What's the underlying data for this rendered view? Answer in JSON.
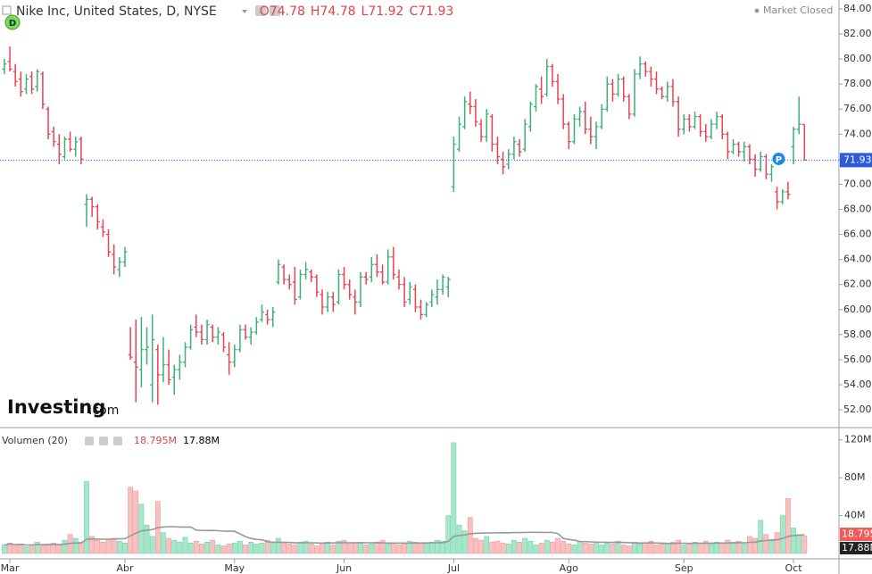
{
  "chart_data": {
    "type": "ohlc",
    "title": "Nike Inc, United States, D, NYSE",
    "ohlc_labels": [
      "O",
      "H",
      "L",
      "C"
    ],
    "status": "Market Closed",
    "logo": [
      "Investing",
      ".com"
    ],
    "badges": [
      "D",
      "P"
    ],
    "up_color": "#3bb077",
    "down_color": "#e8434f",
    "xlim": [
      -0.8,
      152.3
    ],
    "xticks": [
      {
        "value": 1,
        "label": "Mar"
      },
      {
        "value": 22,
        "label": "Abr"
      },
      {
        "value": 42,
        "label": "May"
      },
      {
        "value": 62,
        "label": "Jun"
      },
      {
        "value": 82,
        "label": "Jul"
      },
      {
        "value": 103,
        "label": "Ago"
      },
      {
        "value": 124,
        "label": "Sep"
      },
      {
        "value": 144,
        "label": "Oct"
      }
    ],
    "ylim": [
      50.65,
      84.71
    ],
    "yticks": [
      {
        "value": 52,
        "label": "52.00"
      },
      {
        "value": 54,
        "label": "54.00"
      },
      {
        "value": 56,
        "label": "56.00"
      },
      {
        "value": 58,
        "label": "58.00"
      },
      {
        "value": 60,
        "label": "60.00"
      },
      {
        "value": 62,
        "label": "62.00"
      },
      {
        "value": 64,
        "label": "64.00"
      },
      {
        "value": 66,
        "label": "66.00"
      },
      {
        "value": 68,
        "label": "68.00"
      },
      {
        "value": 70,
        "label": "70.00"
      },
      {
        "value": 72,
        "label": "72.00"
      },
      {
        "value": 74,
        "label": "74.00"
      },
      {
        "value": 76,
        "label": "76.00"
      },
      {
        "value": 78,
        "label": "78.00"
      },
      {
        "value": 80,
        "label": "80.00"
      },
      {
        "value": 82,
        "label": "82.00"
      },
      {
        "value": 84,
        "label": "84.00"
      }
    ],
    "bars": [
      [
        79.2,
        80.0,
        78.8,
        79.6
      ],
      [
        79.8,
        81.0,
        79.0,
        79.2
      ],
      [
        79.0,
        79.6,
        77.8,
        78.2
      ],
      [
        78.4,
        79.0,
        77.0,
        77.4
      ],
      [
        77.6,
        78.8,
        77.2,
        78.4
      ],
      [
        78.6,
        79.0,
        77.2,
        77.6
      ],
      [
        77.8,
        79.2,
        77.4,
        79.0
      ],
      [
        78.8,
        79.0,
        76.0,
        76.4
      ],
      [
        76.0,
        76.2,
        73.6,
        74.0
      ],
      [
        74.2,
        74.6,
        73.0,
        73.4
      ],
      [
        73.2,
        74.0,
        71.6,
        72.4
      ],
      [
        72.2,
        73.8,
        72.0,
        73.6
      ],
      [
        73.6,
        74.2,
        72.6,
        72.8
      ],
      [
        72.8,
        73.8,
        72.2,
        73.4
      ],
      [
        73.6,
        73.8,
        71.6,
        72.0
      ],
      [
        68.4,
        69.2,
        66.6,
        68.8
      ],
      [
        68.8,
        69.0,
        67.4,
        68.2
      ],
      [
        68.2,
        68.4,
        66.4,
        67.0
      ],
      [
        66.6,
        67.2,
        65.8,
        66.2
      ],
      [
        66.0,
        66.4,
        64.2,
        64.6
      ],
      [
        64.4,
        65.2,
        62.8,
        63.4
      ],
      [
        63.2,
        64.2,
        62.6,
        63.8
      ],
      [
        63.8,
        65.0,
        63.4,
        64.6
      ],
      [
        56.4,
        58.6,
        56.0,
        56.2
      ],
      [
        55.8,
        59.2,
        52.6,
        55.4
      ],
      [
        55.2,
        59.4,
        53.8,
        56.8
      ],
      [
        56.8,
        58.6,
        55.6,
        57.0
      ],
      [
        54.0,
        59.6,
        52.6,
        57.6
      ],
      [
        56.8,
        57.2,
        52.4,
        54.8
      ],
      [
        54.8,
        57.8,
        54.2,
        55.6
      ],
      [
        55.6,
        56.8,
        54.0,
        54.4
      ],
      [
        54.6,
        55.6,
        53.2,
        55.2
      ],
      [
        55.2,
        56.4,
        54.4,
        55.8
      ],
      [
        55.8,
        57.4,
        55.4,
        57.0
      ],
      [
        57.0,
        58.8,
        56.8,
        58.4
      ],
      [
        58.6,
        59.6,
        57.8,
        58.2
      ],
      [
        58.2,
        58.8,
        57.2,
        57.6
      ],
      [
        57.6,
        59.2,
        57.2,
        58.8
      ],
      [
        58.6,
        58.8,
        57.4,
        57.8
      ],
      [
        57.8,
        58.6,
        57.2,
        58.2
      ],
      [
        58.0,
        58.2,
        56.6,
        57.0
      ],
      [
        56.4,
        57.4,
        54.8,
        55.8
      ],
      [
        55.8,
        57.2,
        55.4,
        56.8
      ],
      [
        56.8,
        58.8,
        56.6,
        58.4
      ],
      [
        58.4,
        58.8,
        57.6,
        57.8
      ],
      [
        57.8,
        58.6,
        57.2,
        58.2
      ],
      [
        58.2,
        59.4,
        58.0,
        59.0
      ],
      [
        59.2,
        60.4,
        59.0,
        59.8
      ],
      [
        59.6,
        60.0,
        58.8,
        59.2
      ],
      [
        59.2,
        60.2,
        58.6,
        59.8
      ],
      [
        62.2,
        64.0,
        62.0,
        63.6
      ],
      [
        63.4,
        63.6,
        62.0,
        62.4
      ],
      [
        62.4,
        62.8,
        61.6,
        62.0
      ],
      [
        62.2,
        63.4,
        60.4,
        60.8
      ],
      [
        61.0,
        63.2,
        60.8,
        62.8
      ],
      [
        62.8,
        63.8,
        62.4,
        63.2
      ],
      [
        63.0,
        63.2,
        62.2,
        62.6
      ],
      [
        62.6,
        62.8,
        61.0,
        61.4
      ],
      [
        61.2,
        61.6,
        59.6,
        60.2
      ],
      [
        60.2,
        61.4,
        59.8,
        61.0
      ],
      [
        61.0,
        61.4,
        59.8,
        60.4
      ],
      [
        60.6,
        63.2,
        60.4,
        62.8
      ],
      [
        62.8,
        63.4,
        61.6,
        62.0
      ],
      [
        62.0,
        62.4,
        60.8,
        61.2
      ],
      [
        61.0,
        61.6,
        59.6,
        60.6
      ],
      [
        60.6,
        63.0,
        60.2,
        62.6
      ],
      [
        62.6,
        63.0,
        62.0,
        62.4
      ],
      [
        62.6,
        64.2,
        62.2,
        63.6
      ],
      [
        63.6,
        64.4,
        62.6,
        63.0
      ],
      [
        63.0,
        63.6,
        62.0,
        62.2
      ],
      [
        62.2,
        64.8,
        62.0,
        64.2
      ],
      [
        64.2,
        65.0,
        62.4,
        62.8
      ],
      [
        62.6,
        63.2,
        61.6,
        62.0
      ],
      [
        62.0,
        62.6,
        60.2,
        60.6
      ],
      [
        60.8,
        62.2,
        60.4,
        61.8
      ],
      [
        61.6,
        62.0,
        59.8,
        60.2
      ],
      [
        60.2,
        60.8,
        59.2,
        59.6
      ],
      [
        59.6,
        60.6,
        59.4,
        60.4
      ],
      [
        60.6,
        61.6,
        60.2,
        61.2
      ],
      [
        61.0,
        62.4,
        60.4,
        61.6
      ],
      [
        61.6,
        62.8,
        61.2,
        62.6
      ],
      [
        61.8,
        62.6,
        61.0,
        62.4
      ],
      [
        69.8,
        73.8,
        69.4,
        73.2
      ],
      [
        72.8,
        75.4,
        72.6,
        74.8
      ],
      [
        74.6,
        77.0,
        74.4,
        76.6
      ],
      [
        76.4,
        77.4,
        75.6,
        76.2
      ],
      [
        76.2,
        76.8,
        74.6,
        75.0
      ],
      [
        74.8,
        75.2,
        73.4,
        73.8
      ],
      [
        73.8,
        76.0,
        73.4,
        75.6
      ],
      [
        75.4,
        75.6,
        72.6,
        73.2
      ],
      [
        73.2,
        73.8,
        71.6,
        72.2
      ],
      [
        72.0,
        72.6,
        70.8,
        71.4
      ],
      [
        71.6,
        72.8,
        71.2,
        72.4
      ],
      [
        72.4,
        73.8,
        72.0,
        73.4
      ],
      [
        73.2,
        73.6,
        72.2,
        72.6
      ],
      [
        72.8,
        75.2,
        72.6,
        74.8
      ],
      [
        74.6,
        76.6,
        74.2,
        76.4
      ],
      [
        76.2,
        78.0,
        75.8,
        77.8
      ],
      [
        77.6,
        78.6,
        76.4,
        77.0
      ],
      [
        77.2,
        80.0,
        77.0,
        79.4
      ],
      [
        79.4,
        79.6,
        77.8,
        78.2
      ],
      [
        78.2,
        78.8,
        76.4,
        76.8
      ],
      [
        76.8,
        77.2,
        74.4,
        74.8
      ],
      [
        74.8,
        75.0,
        72.8,
        73.4
      ],
      [
        73.4,
        75.6,
        73.2,
        75.2
      ],
      [
        75.2,
        76.2,
        74.6,
        75.8
      ],
      [
        75.8,
        76.6,
        74.0,
        74.4
      ],
      [
        74.4,
        75.4,
        73.2,
        73.8
      ],
      [
        73.8,
        75.0,
        72.8,
        74.6
      ],
      [
        74.6,
        76.4,
        74.4,
        76.0
      ],
      [
        76.0,
        78.6,
        75.8,
        78.0
      ],
      [
        78.0,
        78.4,
        76.6,
        77.2
      ],
      [
        77.2,
        78.8,
        77.0,
        78.4
      ],
      [
        78.4,
        78.6,
        76.6,
        77.0
      ],
      [
        77.0,
        77.2,
        75.2,
        75.6
      ],
      [
        75.6,
        79.2,
        75.4,
        78.8
      ],
      [
        78.8,
        80.2,
        78.4,
        79.6
      ],
      [
        79.6,
        79.8,
        78.6,
        79.0
      ],
      [
        79.0,
        79.4,
        77.8,
        78.4
      ],
      [
        78.4,
        79.0,
        77.2,
        77.6
      ],
      [
        77.6,
        77.8,
        76.8,
        77.0
      ],
      [
        77.0,
        78.2,
        76.6,
        77.8
      ],
      [
        77.8,
        78.4,
        76.2,
        76.6
      ],
      [
        76.6,
        77.0,
        73.8,
        74.4
      ],
      [
        74.4,
        75.6,
        74.0,
        75.2
      ],
      [
        75.2,
        75.6,
        74.2,
        74.6
      ],
      [
        74.6,
        75.8,
        74.4,
        75.4
      ],
      [
        75.4,
        75.6,
        73.8,
        74.2
      ],
      [
        74.2,
        74.8,
        73.4,
        73.8
      ],
      [
        73.8,
        75.2,
        73.6,
        74.8
      ],
      [
        74.8,
        75.8,
        74.4,
        75.4
      ],
      [
        75.4,
        75.6,
        73.6,
        74.0
      ],
      [
        74.0,
        74.2,
        72.0,
        72.6
      ],
      [
        72.6,
        73.6,
        72.4,
        73.2
      ],
      [
        73.2,
        73.4,
        72.2,
        72.6
      ],
      [
        72.6,
        73.4,
        71.8,
        73.0
      ],
      [
        73.0,
        73.2,
        71.6,
        72.0
      ],
      [
        72.0,
        72.4,
        70.6,
        71.2
      ],
      [
        71.2,
        72.6,
        71.0,
        72.2
      ],
      [
        72.2,
        72.4,
        70.4,
        70.8
      ],
      [
        70.8,
        71.6,
        70.2,
        71.4
      ],
      [
        69.4,
        69.8,
        68.0,
        68.6
      ],
      [
        68.6,
        69.6,
        68.4,
        69.4
      ],
      [
        69.4,
        70.2,
        68.8,
        69.2
      ],
      [
        73.0,
        74.6,
        71.6,
        74.4
      ],
      [
        74.4,
        77.0,
        74.0,
        74.8
      ],
      [
        74.78,
        74.78,
        71.92,
        71.93
      ]
    ],
    "volume_title": "Volumen (20)",
    "volume_ma_last": 17.88,
    "volume_ma_label": "17.88M",
    "volume_last_label": "18.795M",
    "volume_axis_last_label": "18.795",
    "volume_ylim": [
      0,
      132
    ],
    "volume_ticks": [
      {
        "value": 40,
        "label": "40M"
      },
      {
        "value": 80,
        "label": "80M"
      },
      {
        "value": 120,
        "label": "120M"
      }
    ],
    "volume": [
      9,
      11,
      8,
      10,
      7,
      9,
      12,
      8,
      10,
      11,
      9,
      14,
      20,
      16,
      12,
      76,
      18,
      14,
      12,
      15,
      16,
      13,
      11,
      70,
      66,
      52,
      30,
      18,
      55,
      22,
      16,
      14,
      12,
      17,
      11,
      13,
      10,
      12,
      14,
      9,
      8,
      10,
      11,
      13,
      9,
      12,
      10,
      11,
      14,
      12,
      16,
      11,
      10,
      9,
      12,
      13,
      10,
      8,
      11,
      12,
      9,
      13,
      14,
      10,
      11,
      12,
      9,
      10,
      12,
      14,
      10,
      11,
      9,
      10,
      13,
      12,
      11,
      10,
      12,
      14,
      13,
      40,
      117,
      30,
      24,
      38,
      16,
      14,
      18,
      12,
      13,
      11,
      10,
      14,
      12,
      16,
      13,
      9,
      11,
      14,
      12,
      16,
      13,
      10,
      9,
      12,
      11,
      10,
      12,
      9,
      11,
      10,
      13,
      9,
      8,
      12,
      10,
      11,
      13,
      9,
      10,
      11,
      12,
      14,
      9,
      10,
      12,
      11,
      13,
      10,
      12,
      11,
      14,
      12,
      13,
      10,
      18,
      16,
      35,
      20,
      15,
      22,
      40,
      58,
      27,
      20,
      18.795
    ]
  }
}
